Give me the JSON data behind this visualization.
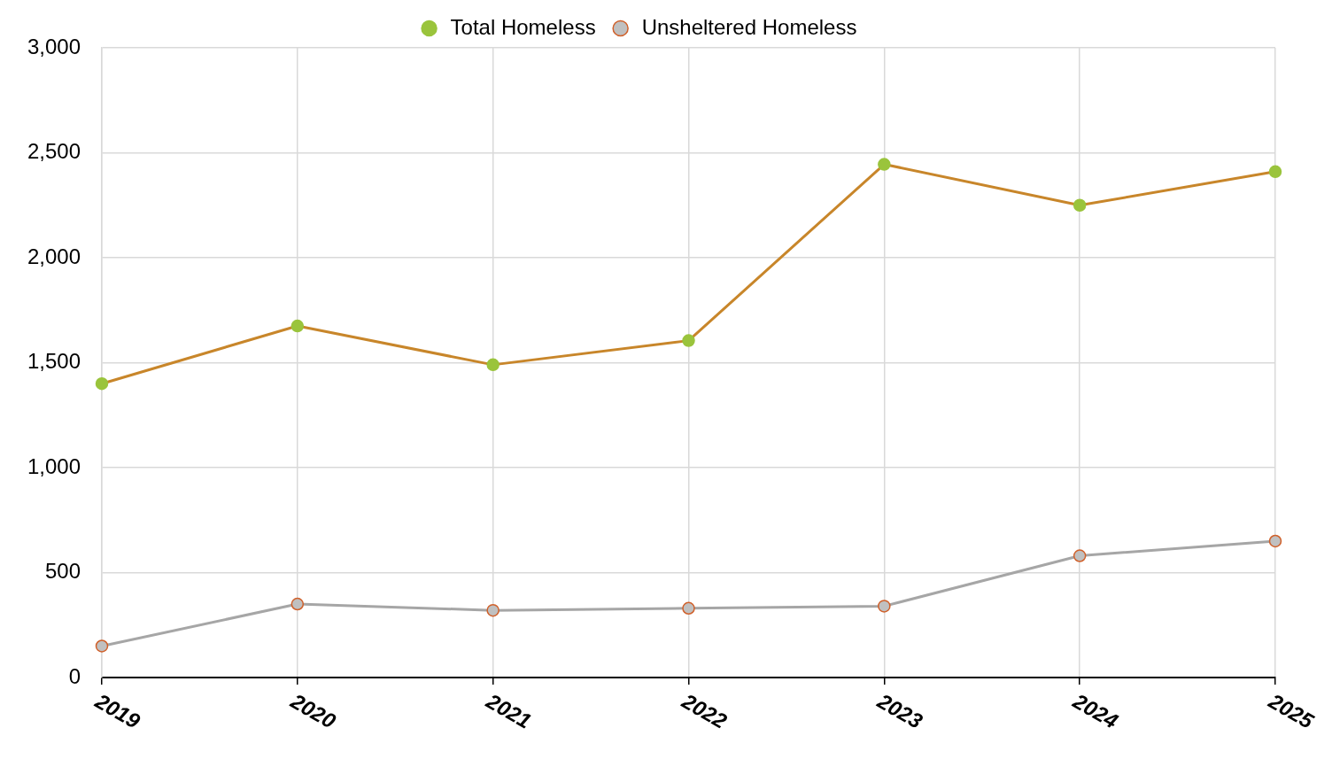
{
  "chart_data": {
    "type": "line",
    "categories": [
      "2019",
      "2020",
      "2021",
      "2022",
      "2023",
      "2024",
      "2025"
    ],
    "series": [
      {
        "name": "Total Homeless",
        "color": "#c8862a",
        "values": [
          1400,
          1675,
          1490,
          1605,
          2445,
          2250,
          2410
        ]
      },
      {
        "name": "Unsheltered Homeless",
        "color": "#a6a6a6",
        "values": [
          150,
          350,
          320,
          330,
          340,
          580,
          650
        ]
      }
    ],
    "ylim": [
      0,
      3000
    ],
    "yticks": [
      {
        "value": 0,
        "label": "0"
      },
      {
        "value": 500,
        "label": "500"
      },
      {
        "value": 1000,
        "label": "1,000"
      },
      {
        "value": 1500,
        "label": "1,500"
      },
      {
        "value": 2000,
        "label": "2,000"
      },
      {
        "value": 2500,
        "label": "2,500"
      },
      {
        "value": 3000,
        "label": "3,000"
      }
    ],
    "grid": true,
    "legend": "top",
    "marker": "circle"
  }
}
